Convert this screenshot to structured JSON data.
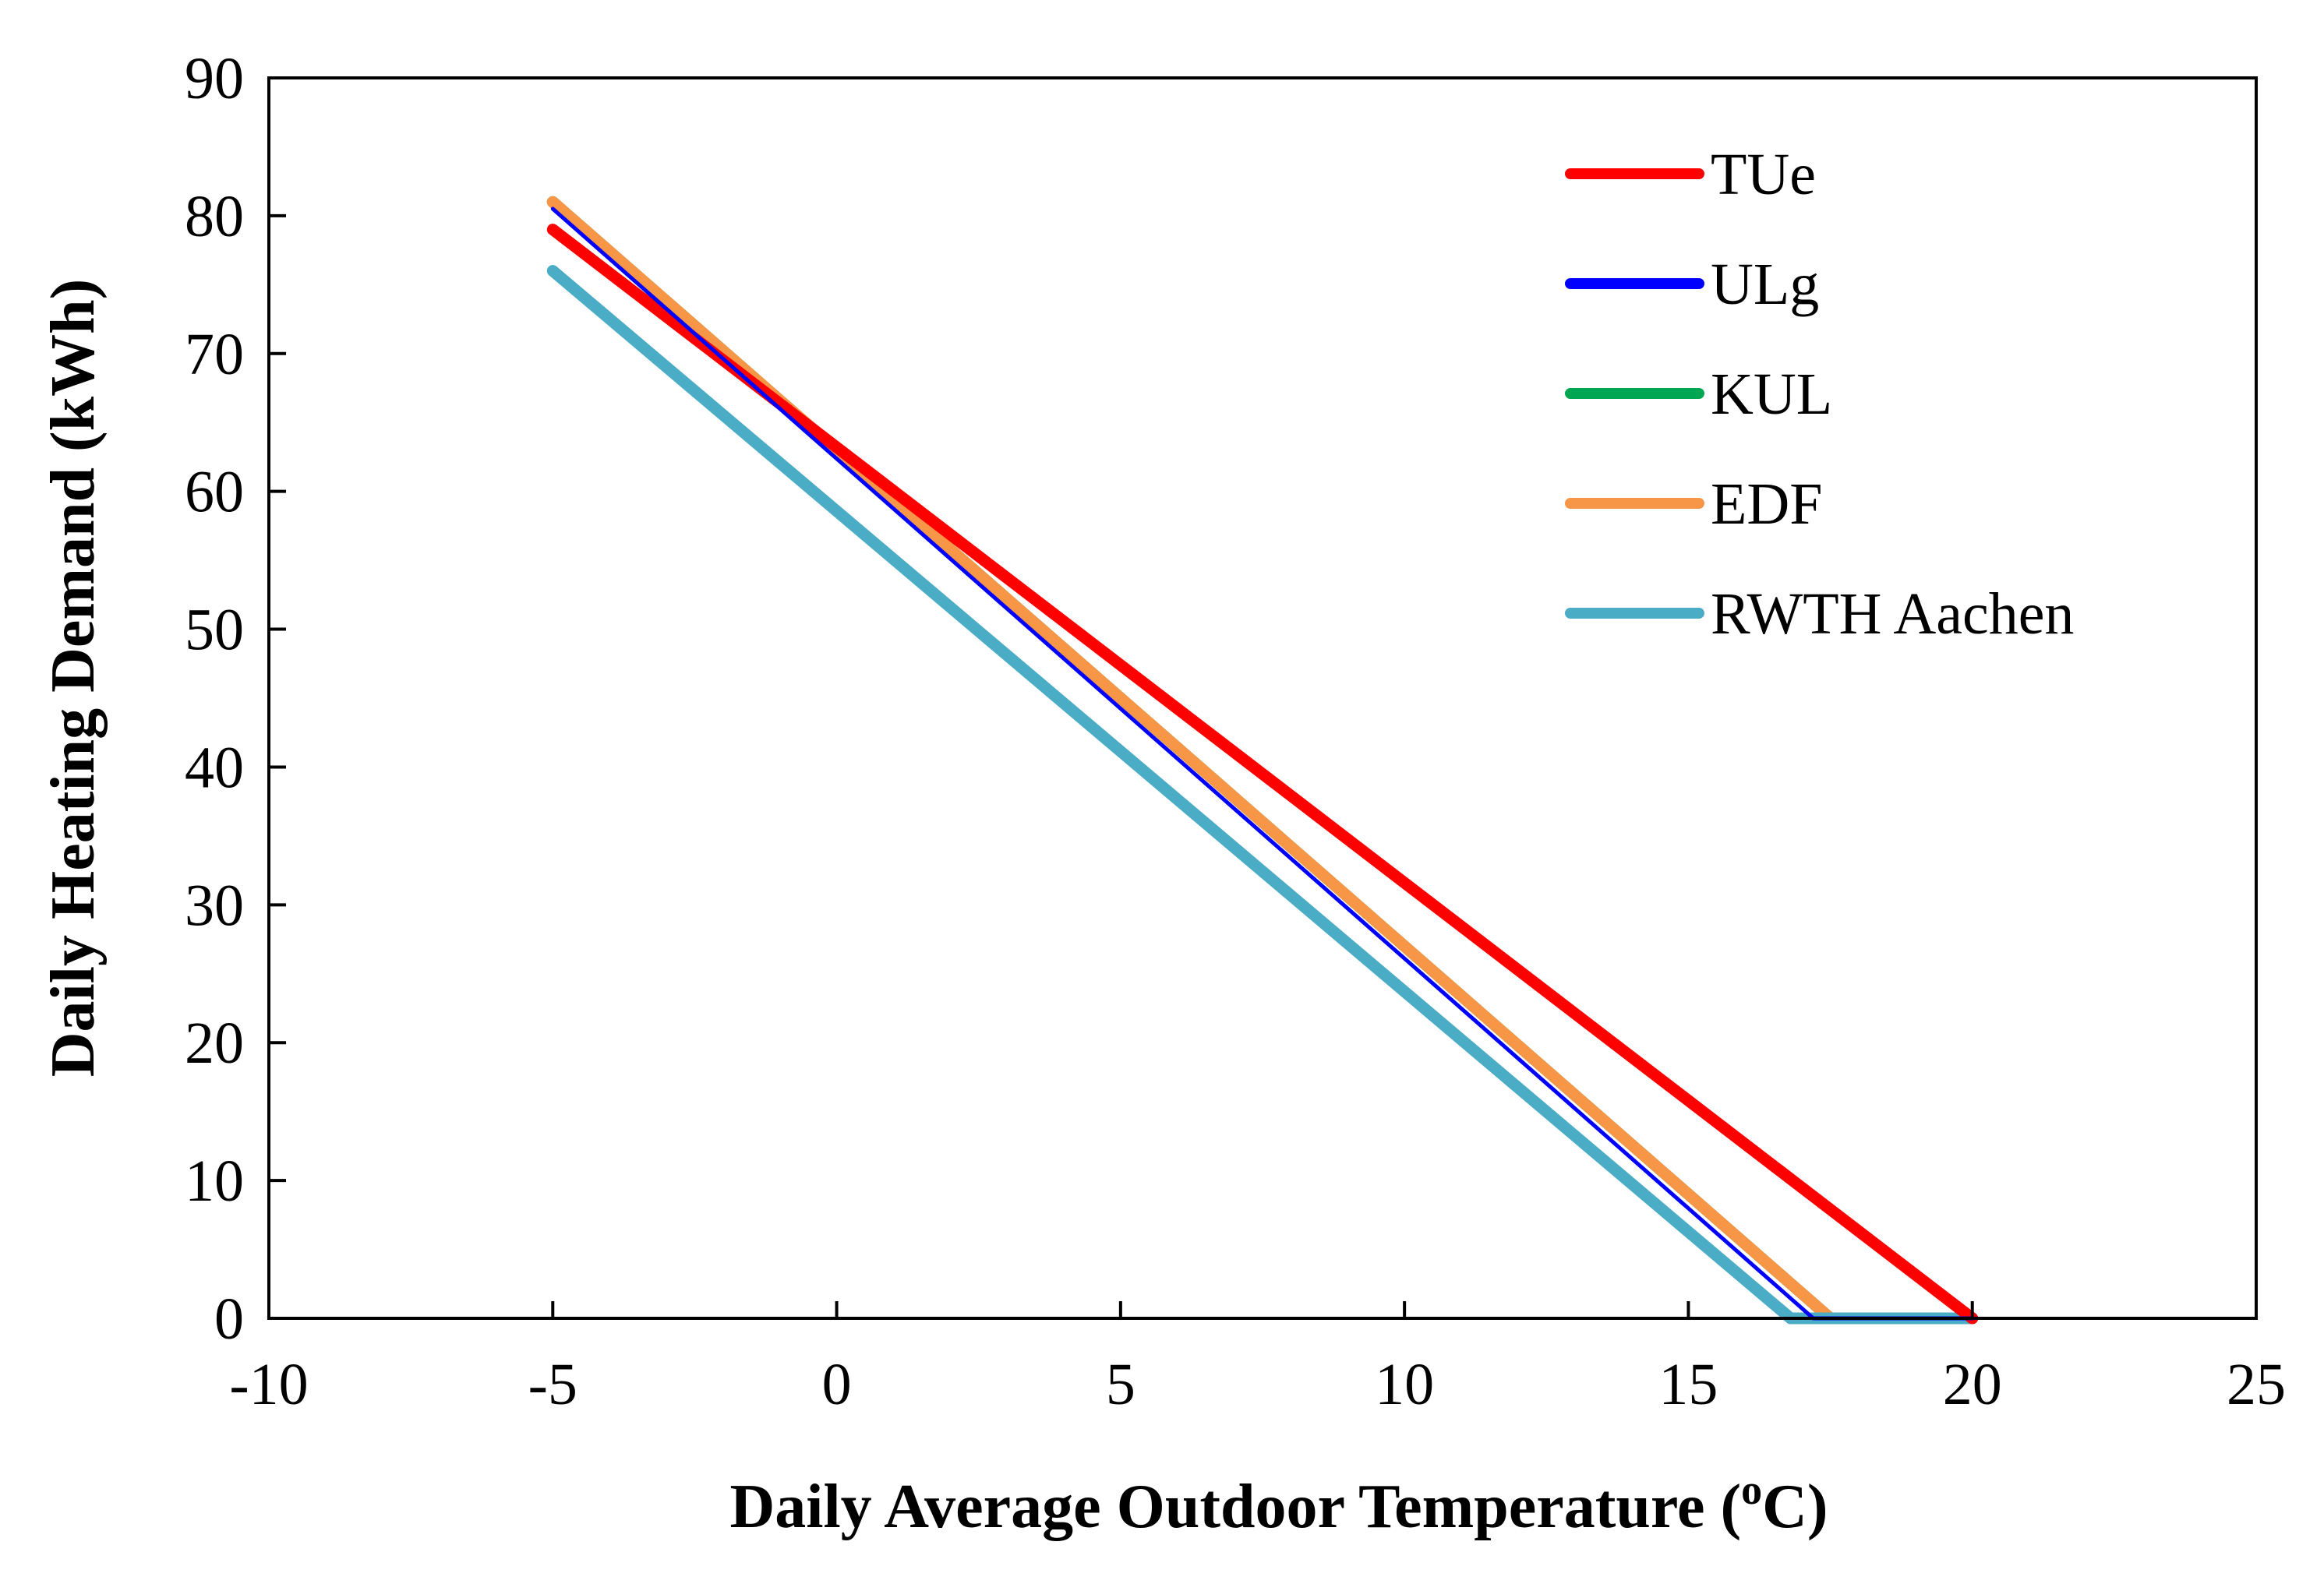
{
  "chart_data": {
    "type": "line",
    "xlabel": "Daily Average Outdoor Temperature (",
    "xlabel_superscript": "o",
    "xlabel_suffix": "C)",
    "ylabel": "Daily Heating Demand (kWh)",
    "xlim": [
      -10,
      25
    ],
    "ylim": [
      0,
      90
    ],
    "xticks": [
      -10,
      -5,
      0,
      5,
      10,
      15,
      20,
      25
    ],
    "yticks": [
      0,
      10,
      20,
      30,
      40,
      50,
      60,
      70,
      80,
      90
    ],
    "xtick_labels": [
      "-10",
      "-5",
      "0",
      "5",
      "10",
      "15",
      "20",
      "25"
    ],
    "ytick_labels": [
      "0",
      "10",
      "20",
      "30",
      "40",
      "50",
      "60",
      "70",
      "80",
      "90"
    ],
    "grid": false,
    "legend_position": "top-right",
    "series": [
      {
        "name": "TUe",
        "color": "#ff0000",
        "width": "thick",
        "points": [
          [
            -5,
            79
          ],
          [
            20,
            0
          ]
        ]
      },
      {
        "name": "ULg",
        "color": "#0000ff",
        "width": "thin",
        "points": [
          [
            -5,
            80.5
          ],
          [
            17.2,
            0
          ],
          [
            20,
            0
          ]
        ]
      },
      {
        "name": "KUL",
        "color": "#00a651",
        "width": "thick",
        "points": [
          [
            -5,
            81
          ],
          [
            17.5,
            0
          ],
          [
            20,
            0
          ]
        ]
      },
      {
        "name": "EDF",
        "color": "#f79646",
        "width": "thick",
        "points": [
          [
            -5,
            81
          ],
          [
            17.5,
            0
          ]
        ]
      },
      {
        "name": "RWTH Aachen",
        "color": "#4bacc6",
        "width": "thick",
        "points": [
          [
            -5,
            76
          ],
          [
            16.8,
            0
          ],
          [
            20,
            0
          ]
        ]
      }
    ]
  }
}
